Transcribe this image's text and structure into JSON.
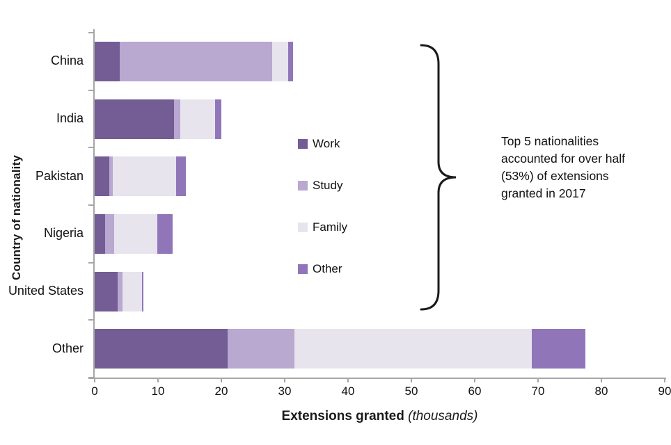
{
  "chart_data": {
    "type": "bar",
    "orientation": "horizontal",
    "stacked": true,
    "categories": [
      "China",
      "India",
      "Pakistan",
      "Nigeria",
      "United States",
      "Other"
    ],
    "series": [
      {
        "name": "Work",
        "color": "#745c94",
        "values": [
          4.0,
          12.5,
          2.3,
          1.6,
          3.6,
          21.0
        ]
      },
      {
        "name": "Study",
        "color": "#b9a8d0",
        "values": [
          24.0,
          1.0,
          0.6,
          1.5,
          0.8,
          10.5
        ]
      },
      {
        "name": "Family",
        "color": "#e8e4ee",
        "values": [
          2.5,
          5.5,
          10.0,
          6.8,
          3.1,
          37.5
        ]
      },
      {
        "name": "Other",
        "color": "#9076b9",
        "values": [
          0.8,
          1.0,
          1.5,
          2.4,
          0.2,
          8.5
        ]
      }
    ],
    "xlabel": "Extensions granted (thousands)",
    "xlabel_parts": {
      "bold": "Extensions granted",
      "italic": "(thousands)"
    },
    "ylabel": "Country of nationality",
    "xlim": [
      0,
      90
    ],
    "xticks": [
      0,
      10,
      20,
      30,
      40,
      50,
      60,
      70,
      80,
      90
    ],
    "grid": false,
    "legend_position": "center-left-of-plot",
    "annotation": {
      "lines": [
        "Top 5 nationalities",
        "accounted for over half",
        "(53%) of extensions",
        "granted in 2017"
      ],
      "text": "Top 5 nationalities accounted for over half (53%) of extensions granted in 2017",
      "brace_covers": [
        "China",
        "India",
        "Pakistan",
        "Nigeria",
        "United States"
      ]
    },
    "axis_color": "#a6a6a6",
    "text_color": "#111111"
  }
}
